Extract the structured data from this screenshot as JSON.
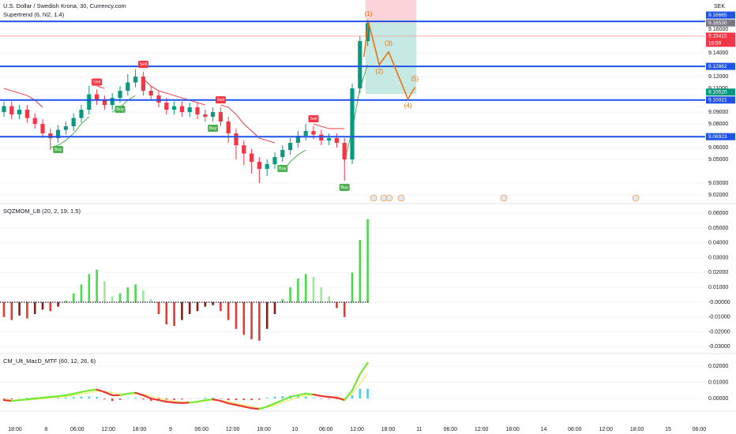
{
  "chart_data": [
    {
      "type": "candlestick",
      "title": "U.S. Dollar / Swedish Krona, 30, Currency.com",
      "subtitle": "Supertrend (6, hl2, 1.4)",
      "currency": "SEK",
      "open": [
        9.09,
        9.095,
        9.088,
        9.092,
        9.085,
        9.08,
        9.072,
        9.068,
        9.075,
        9.078,
        9.085,
        9.092,
        9.105,
        9.1,
        9.096,
        9.102,
        9.108,
        9.115,
        9.12,
        9.108,
        9.104,
        9.098,
        9.092,
        9.095,
        9.09,
        9.094,
        9.088,
        9.086,
        9.09,
        9.082,
        9.072,
        9.062,
        9.055,
        9.048,
        9.042,
        9.046,
        9.052,
        9.058,
        9.064,
        9.07,
        9.074,
        9.071,
        9.066,
        9.068,
        9.064,
        9.05,
        9.11,
        9.15
      ],
      "high": [
        9.099,
        9.099,
        9.096,
        9.096,
        9.089,
        9.084,
        9.076,
        9.079,
        9.082,
        9.089,
        9.096,
        9.112,
        9.109,
        9.104,
        9.106,
        9.112,
        9.122,
        9.126,
        9.124,
        9.112,
        9.108,
        9.102,
        9.099,
        9.099,
        9.098,
        9.098,
        9.092,
        9.094,
        9.094,
        9.086,
        9.076,
        9.066,
        9.059,
        9.052,
        9.05,
        9.056,
        9.062,
        9.068,
        9.074,
        9.08,
        9.078,
        9.075,
        9.072,
        9.072,
        9.068,
        9.114,
        9.154,
        9.168
      ],
      "low": [
        9.086,
        9.084,
        9.084,
        9.081,
        9.076,
        9.068,
        9.058,
        9.064,
        9.071,
        9.074,
        9.081,
        9.088,
        9.096,
        9.092,
        9.092,
        9.098,
        9.104,
        9.111,
        9.104,
        9.1,
        9.094,
        9.088,
        9.088,
        9.086,
        9.086,
        9.084,
        9.082,
        9.082,
        9.078,
        9.064,
        9.05,
        9.045,
        9.038,
        9.03,
        9.036,
        9.042,
        9.048,
        9.054,
        9.06,
        9.066,
        9.067,
        9.062,
        9.062,
        9.06,
        9.032,
        9.046,
        9.106,
        9.146
      ],
      "close": [
        9.095,
        9.088,
        9.092,
        9.085,
        9.08,
        9.072,
        9.068,
        9.075,
        9.078,
        9.085,
        9.092,
        9.105,
        9.1,
        9.096,
        9.102,
        9.108,
        9.115,
        9.12,
        9.108,
        9.104,
        9.098,
        9.092,
        9.095,
        9.09,
        9.094,
        9.088,
        9.086,
        9.09,
        9.082,
        9.072,
        9.062,
        9.055,
        9.048,
        9.042,
        9.046,
        9.052,
        9.058,
        9.064,
        9.07,
        9.074,
        9.071,
        9.066,
        9.068,
        9.064,
        9.05,
        9.11,
        9.15,
        9.165
      ],
      "up_color": "#089981",
      "down_color": "#f23645",
      "ylim": [
        9.0127,
        9.1847
      ],
      "yticks": [
        {
          "value": 9.16,
          "label": "9.16000"
        },
        {
          "value": 9.14,
          "label": "9.14000"
        },
        {
          "value": 9.12,
          "label": "9.12000"
        },
        {
          "value": 9.11,
          "label": "9.11000"
        },
        {
          "value": 9.09,
          "label": "9.09000"
        },
        {
          "value": 9.08,
          "label": "9.08000"
        },
        {
          "value": 9.06,
          "label": "9.06000"
        },
        {
          "value": 9.05,
          "label": "9.05000"
        },
        {
          "value": 9.03,
          "label": "9.03000"
        },
        {
          "value": 9.02,
          "label": "9.02000"
        }
      ],
      "supertrend": [
        {
          "color": "#f23645",
          "values": [
            9.11,
            9.108,
            9.106,
            9.104,
            9.1,
            9.094,
            null,
            null,
            null,
            null,
            null,
            null,
            9.112,
            9.11,
            null,
            null,
            null,
            null,
            9.118,
            9.112,
            9.108,
            9.106,
            9.104,
            9.102,
            9.1,
            9.098,
            9.096,
            null,
            9.096,
            9.094,
            9.088,
            9.08,
            9.074,
            9.068,
            9.066,
            9.064,
            null,
            null,
            null,
            null,
            9.08,
            9.078,
            9.076,
            9.076,
            9.076,
            null,
            null,
            null
          ]
        },
        {
          "color": "#4caf50",
          "values": [
            null,
            null,
            null,
            null,
            null,
            null,
            9.06,
            9.062,
            9.066,
            9.072,
            9.08,
            9.086,
            null,
            null,
            9.09,
            9.094,
            9.1,
            9.104,
            null,
            null,
            null,
            null,
            null,
            null,
            null,
            null,
            null,
            9.082,
            null,
            null,
            null,
            null,
            null,
            null,
            null,
            null,
            9.04,
            9.048,
            9.054,
            9.058,
            null,
            null,
            null,
            null,
            9.048,
            9.075,
            9.11,
            9.13
          ]
        }
      ],
      "signals": [
        {
          "label": "Buy",
          "index": 7,
          "color": "#4caf50",
          "position": "below"
        },
        {
          "label": "Sell",
          "index": 12,
          "color": "#f23645",
          "position": "above"
        },
        {
          "label": "Buy",
          "index": 15,
          "color": "#4caf50",
          "position": "below"
        },
        {
          "label": "Sell",
          "index": 18,
          "color": "#f23645",
          "position": "above"
        },
        {
          "label": "Buy",
          "index": 27,
          "color": "#4caf50",
          "position": "below"
        },
        {
          "label": "Sell",
          "index": 28,
          "color": "#f23645",
          "position": "above"
        },
        {
          "label": "Buy",
          "index": 36,
          "color": "#4caf50",
          "position": "below"
        },
        {
          "label": "Sell",
          "index": 40,
          "color": "#f23645",
          "position": "above"
        },
        {
          "label": "Buy",
          "index": 44,
          "color": "#4caf50",
          "position": "below"
        }
      ],
      "levels": {
        "color": "#1e53e5",
        "values": [
          9.16665,
          9.12862,
          9.10021,
          9.06923
        ]
      },
      "price_line": {
        "color": "#f7a1a8",
        "value": 9.15415
      },
      "position": {
        "start": 46.7,
        "end": 53.3,
        "stop": 9.185,
        "entry": 9.1653,
        "target": 9.1052,
        "stop_color": "#f9c9cc",
        "target_color": "#b9e3dc"
      },
      "wave": {
        "color": "#ef6c00",
        "labels": [
          null,
          "(1)",
          "(2)",
          "(3)",
          "(4)",
          "(5)"
        ],
        "x": [
          46.5,
          47.1,
          48.5,
          49.7,
          52.2,
          53.1
        ],
        "y": [
          9.1367,
          9.166,
          9.13,
          9.141,
          9.101,
          9.111
        ]
      },
      "price_labels": [
        {
          "value": 9.16665,
          "label": "9.16665",
          "color": "#1e53e5"
        },
        {
          "value": 9.1653,
          "label": "9.16530",
          "color": "#787b86"
        },
        {
          "value": 9.15415,
          "label": "9.15415",
          "color": "#f23645",
          "countdown": "18:59"
        },
        {
          "value": 9.12862,
          "label": "9.12862",
          "color": "#1e53e5"
        },
        {
          "value": 9.1052,
          "label": "9.10520",
          "color": "#089981"
        },
        {
          "value": 9.10021,
          "label": "9.10021",
          "color": "#1e53e5"
        },
        {
          "value": 9.06923,
          "label": "9.06923",
          "color": "#1e53e5"
        }
      ]
    },
    {
      "type": "histogram",
      "title": "SQZMOM_LB (20, 2, 19, 1.5)",
      "values": [
        -0.01,
        -0.012,
        -0.009,
        -0.011,
        -0.008,
        -0.005,
        -0.006,
        -0.003,
        0.001,
        0.006,
        0.012,
        0.019,
        0.022,
        0.014,
        0.004,
        0.006,
        0.01,
        0.012,
        0.008,
        0.002,
        -0.008,
        -0.015,
        -0.016,
        -0.012,
        -0.008,
        -0.006,
        -0.003,
        -0.002,
        -0.006,
        -0.012,
        -0.018,
        -0.022,
        -0.025,
        -0.026,
        -0.018,
        -0.008,
        0.002,
        0.01,
        0.016,
        0.019,
        0.017,
        0.01,
        0.004,
        -0.004,
        -0.01,
        0.02,
        0.042,
        0.056
      ],
      "colors": {
        "pos_rising": "#4cd94c",
        "pos_falling": "#9be89b",
        "neg_falling": "#e53935",
        "neg_rising": "#8e1b1b"
      },
      "ylim": [
        -0.0346,
        0.0665
      ],
      "yticks": [
        {
          "value": 0.06,
          "label": "0.06000"
        },
        {
          "value": 0.05,
          "label": "0.05000"
        },
        {
          "value": 0.04,
          "label": "0.04000"
        },
        {
          "value": 0.03,
          "label": "0.03000"
        },
        {
          "value": 0.02,
          "label": "0.02000"
        },
        {
          "value": 0.01,
          "label": "0.01000"
        },
        {
          "value": 0,
          "label": "-0.00000"
        },
        {
          "value": -0.01,
          "label": "-0.01000"
        },
        {
          "value": -0.02,
          "label": "-0.02000"
        },
        {
          "value": -0.03,
          "label": "-0.03000"
        }
      ]
    },
    {
      "type": "macd",
      "title": "CM_Ult_MacD_MTF (60, 12, 26, 6)",
      "macd": {
        "color_up": "#76e836",
        "color_down": "#e53935",
        "values": [
          -0.001,
          -0.0015,
          -0.001,
          -0.0005,
          0.0,
          0.0005,
          0.001,
          0.0015,
          0.002,
          0.003,
          0.004,
          0.005,
          0.0055,
          0.004,
          0.002,
          0.002,
          0.003,
          0.0035,
          0.002,
          0.0,
          -0.001,
          -0.002,
          -0.0025,
          -0.0028,
          -0.0025,
          -0.002,
          -0.001,
          -0.0005,
          -0.0015,
          -0.003,
          -0.004,
          -0.005,
          -0.006,
          -0.0065,
          -0.005,
          -0.003,
          -0.001,
          0.001,
          0.002,
          0.003,
          0.0025,
          0.0015,
          0.001,
          0.0005,
          -0.001,
          0.005,
          0.015,
          0.022
        ]
      },
      "signal": {
        "color": "#f2e86d",
        "values": [
          -0.0005,
          -0.001,
          -0.0012,
          -0.001,
          -0.0006,
          -0.0002,
          0.0003,
          0.0008,
          0.0013,
          0.002,
          0.0028,
          0.0037,
          0.0045,
          0.0045,
          0.0036,
          0.0028,
          0.0028,
          0.003,
          0.0026,
          0.0015,
          0.0004,
          -0.0008,
          -0.0016,
          -0.0022,
          -0.0024,
          -0.0022,
          -0.0016,
          -0.001,
          -0.0012,
          -0.002,
          -0.003,
          -0.004,
          -0.005,
          -0.0058,
          -0.0055,
          -0.0042,
          -0.0025,
          -0.0008,
          0.0006,
          0.0018,
          0.0022,
          0.0018,
          0.0013,
          0.0008,
          0.0,
          0.003,
          0.009,
          0.016
        ]
      },
      "histogram": {
        "color_up": "#4dd0e1",
        "color_down": "#f44336",
        "values": [
          -0.0005,
          -0.0005,
          0.0002,
          0.0005,
          0.0006,
          0.0007,
          0.0007,
          0.0007,
          0.0007,
          0.001,
          0.0012,
          0.0013,
          0.001,
          -0.0005,
          -0.0016,
          -0.0008,
          0.0002,
          0.0005,
          -0.0006,
          -0.0015,
          -0.0014,
          -0.0012,
          -0.0009,
          -0.0006,
          -0.0001,
          0.0002,
          0.0006,
          0.0005,
          -0.0003,
          -0.001,
          -0.001,
          -0.001,
          -0.001,
          -0.0007,
          0.0005,
          0.0012,
          0.0015,
          0.0018,
          0.0014,
          0.0012,
          0.0003,
          -0.0003,
          -0.0003,
          -0.0003,
          -0.001,
          0.002,
          0.006,
          0.006
        ]
      },
      "ylim": [
        -0.0073,
        0.0278
      ],
      "yticks": [
        {
          "value": 0.02,
          "label": "0.02000"
        },
        {
          "value": 0.01,
          "label": "0.01000"
        },
        {
          "value": 0,
          "label": "0.00000"
        }
      ]
    }
  ],
  "x_labels": [
    "18:00",
    "8",
    "06:00",
    "12:00",
    "18:00",
    "9",
    "06:00",
    "12:00",
    "18:00",
    "10",
    "06:00",
    "12:00",
    "18:00",
    "11",
    "06:00",
    "12:00",
    "18:00",
    "14",
    "06:00",
    "12:00",
    "18:00",
    "15",
    "06:00"
  ]
}
